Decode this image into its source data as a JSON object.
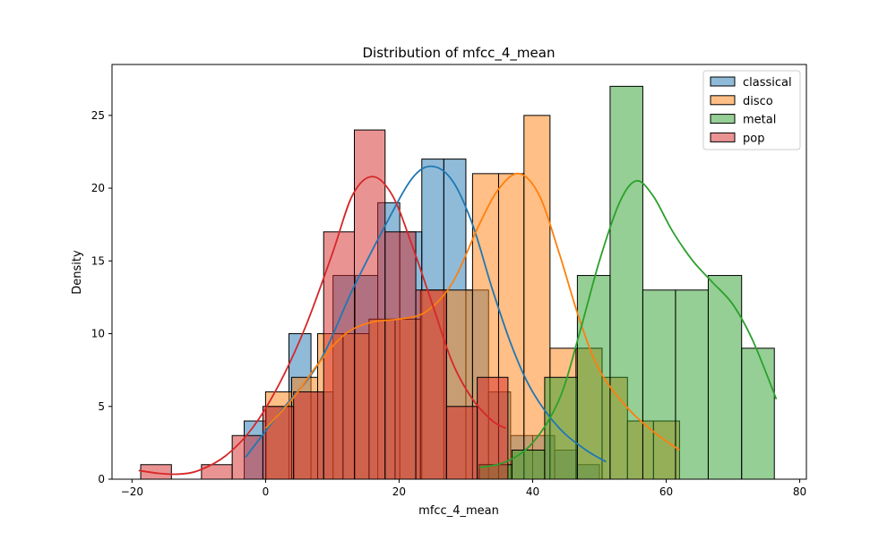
{
  "chart_data": {
    "type": "histogram",
    "title": "Distribution of mfcc_4_mean",
    "xlabel": "mfcc_4_mean",
    "ylabel": "Density",
    "xlim": [
      -23,
      81
    ],
    "ylim": [
      0,
      28.5
    ],
    "xticks": [
      -20,
      0,
      20,
      40,
      60,
      80
    ],
    "yticks": [
      0,
      5,
      10,
      15,
      20,
      25
    ],
    "legend_position": "top-right",
    "series": [
      {
        "name": "classical",
        "color": "#1f77b4",
        "bins": [
          [
            -3.2,
            0.1,
            4
          ],
          [
            0.1,
            3.5,
            5
          ],
          [
            3.5,
            6.8,
            10
          ],
          [
            6.8,
            10.1,
            6
          ],
          [
            10.1,
            13.4,
            14
          ],
          [
            13.4,
            16.8,
            14
          ],
          [
            16.8,
            20.1,
            19
          ],
          [
            20.1,
            23.4,
            17
          ],
          [
            23.4,
            26.7,
            22
          ],
          [
            26.7,
            30.0,
            22
          ],
          [
            30.0,
            33.4,
            13
          ],
          [
            33.4,
            36.7,
            6
          ],
          [
            36.7,
            40.0,
            3
          ],
          [
            40.0,
            43.3,
            3
          ],
          [
            43.3,
            46.7,
            2
          ],
          [
            46.7,
            50.0,
            1
          ]
        ],
        "kde": [
          [
            -3,
            1.5
          ],
          [
            2,
            4.5
          ],
          [
            8,
            8
          ],
          [
            13,
            13
          ],
          [
            18,
            17.5
          ],
          [
            22,
            20.7
          ],
          [
            25,
            21.5
          ],
          [
            28,
            20.5
          ],
          [
            31,
            17.5
          ],
          [
            34,
            13
          ],
          [
            37,
            9
          ],
          [
            40,
            6
          ],
          [
            44,
            3.5
          ],
          [
            48,
            2
          ],
          [
            51,
            1.2
          ]
        ]
      },
      {
        "name": "disco",
        "color": "#ff7f0e",
        "bins": [
          [
            0.0,
            3.9,
            6
          ],
          [
            3.9,
            7.8,
            7
          ],
          [
            7.8,
            11.6,
            10
          ],
          [
            11.6,
            15.5,
            10
          ],
          [
            15.5,
            19.4,
            11
          ],
          [
            19.4,
            23.2,
            11
          ],
          [
            23.2,
            27.1,
            13
          ],
          [
            27.1,
            31.0,
            13
          ],
          [
            31.0,
            34.9,
            21
          ],
          [
            34.9,
            38.7,
            21
          ],
          [
            38.7,
            42.6,
            25
          ],
          [
            42.6,
            46.5,
            9
          ],
          [
            46.5,
            50.4,
            9
          ],
          [
            50.4,
            54.2,
            7
          ],
          [
            54.2,
            58.1,
            4
          ],
          [
            58.1,
            62.0,
            4
          ]
        ],
        "kde": [
          [
            0,
            3.5
          ],
          [
            4,
            5.5
          ],
          [
            8,
            8
          ],
          [
            12,
            10
          ],
          [
            16,
            10.8
          ],
          [
            20,
            11
          ],
          [
            24,
            11.5
          ],
          [
            28,
            13.5
          ],
          [
            32,
            17.5
          ],
          [
            35,
            20
          ],
          [
            38,
            21
          ],
          [
            41,
            19.5
          ],
          [
            44,
            15.5
          ],
          [
            47,
            11
          ],
          [
            50,
            7.5
          ],
          [
            54,
            5
          ],
          [
            58,
            3.3
          ],
          [
            62,
            2
          ]
        ]
      },
      {
        "name": "metal",
        "color": "#2ca02c",
        "bins": [
          [
            32.0,
            36.9,
            1
          ],
          [
            36.9,
            41.8,
            2
          ],
          [
            41.8,
            46.7,
            7
          ],
          [
            46.7,
            51.6,
            14
          ],
          [
            51.6,
            56.5,
            27
          ],
          [
            56.5,
            61.4,
            13
          ],
          [
            61.4,
            66.3,
            13
          ],
          [
            66.3,
            71.3,
            14
          ],
          [
            71.3,
            76.2,
            9
          ]
        ],
        "kde": [
          [
            32,
            0.8
          ],
          [
            36,
            1.2
          ],
          [
            40,
            2.5
          ],
          [
            44,
            5.5
          ],
          [
            47,
            10
          ],
          [
            50,
            15
          ],
          [
            53,
            19
          ],
          [
            55.5,
            20.5
          ],
          [
            58,
            19.5
          ],
          [
            61,
            17
          ],
          [
            64,
            15
          ],
          [
            67,
            13.5
          ],
          [
            70,
            12
          ],
          [
            73,
            9.5
          ],
          [
            76.5,
            5.5
          ]
        ]
      },
      {
        "name": "pop",
        "color": "#d62728",
        "bins": [
          [
            -18.7,
            -14.1,
            1
          ],
          [
            -14.1,
            -9.6,
            0
          ],
          [
            -9.6,
            -5.0,
            1
          ],
          [
            -5.0,
            -0.4,
            3
          ],
          [
            -0.4,
            4.2,
            5
          ],
          [
            4.2,
            8.7,
            6
          ],
          [
            8.7,
            13.3,
            17
          ],
          [
            13.3,
            17.9,
            24
          ],
          [
            17.9,
            22.5,
            17
          ],
          [
            22.5,
            27.1,
            13
          ],
          [
            27.1,
            31.7,
            5
          ],
          [
            31.7,
            36.3,
            7
          ]
        ],
        "kde": [
          [
            -19,
            0.6
          ],
          [
            -16,
            0.4
          ],
          [
            -13,
            0.35
          ],
          [
            -10,
            0.6
          ],
          [
            -6,
            1.6
          ],
          [
            -2,
            3.5
          ],
          [
            2,
            6.5
          ],
          [
            6,
            10.5
          ],
          [
            10,
            15.5
          ],
          [
            13,
            19.5
          ],
          [
            16,
            20.8
          ],
          [
            19,
            19.5
          ],
          [
            22,
            16
          ],
          [
            25,
            12
          ],
          [
            28,
            8
          ],
          [
            31,
            5.5
          ],
          [
            34,
            4
          ],
          [
            36,
            3.5
          ]
        ]
      }
    ]
  }
}
